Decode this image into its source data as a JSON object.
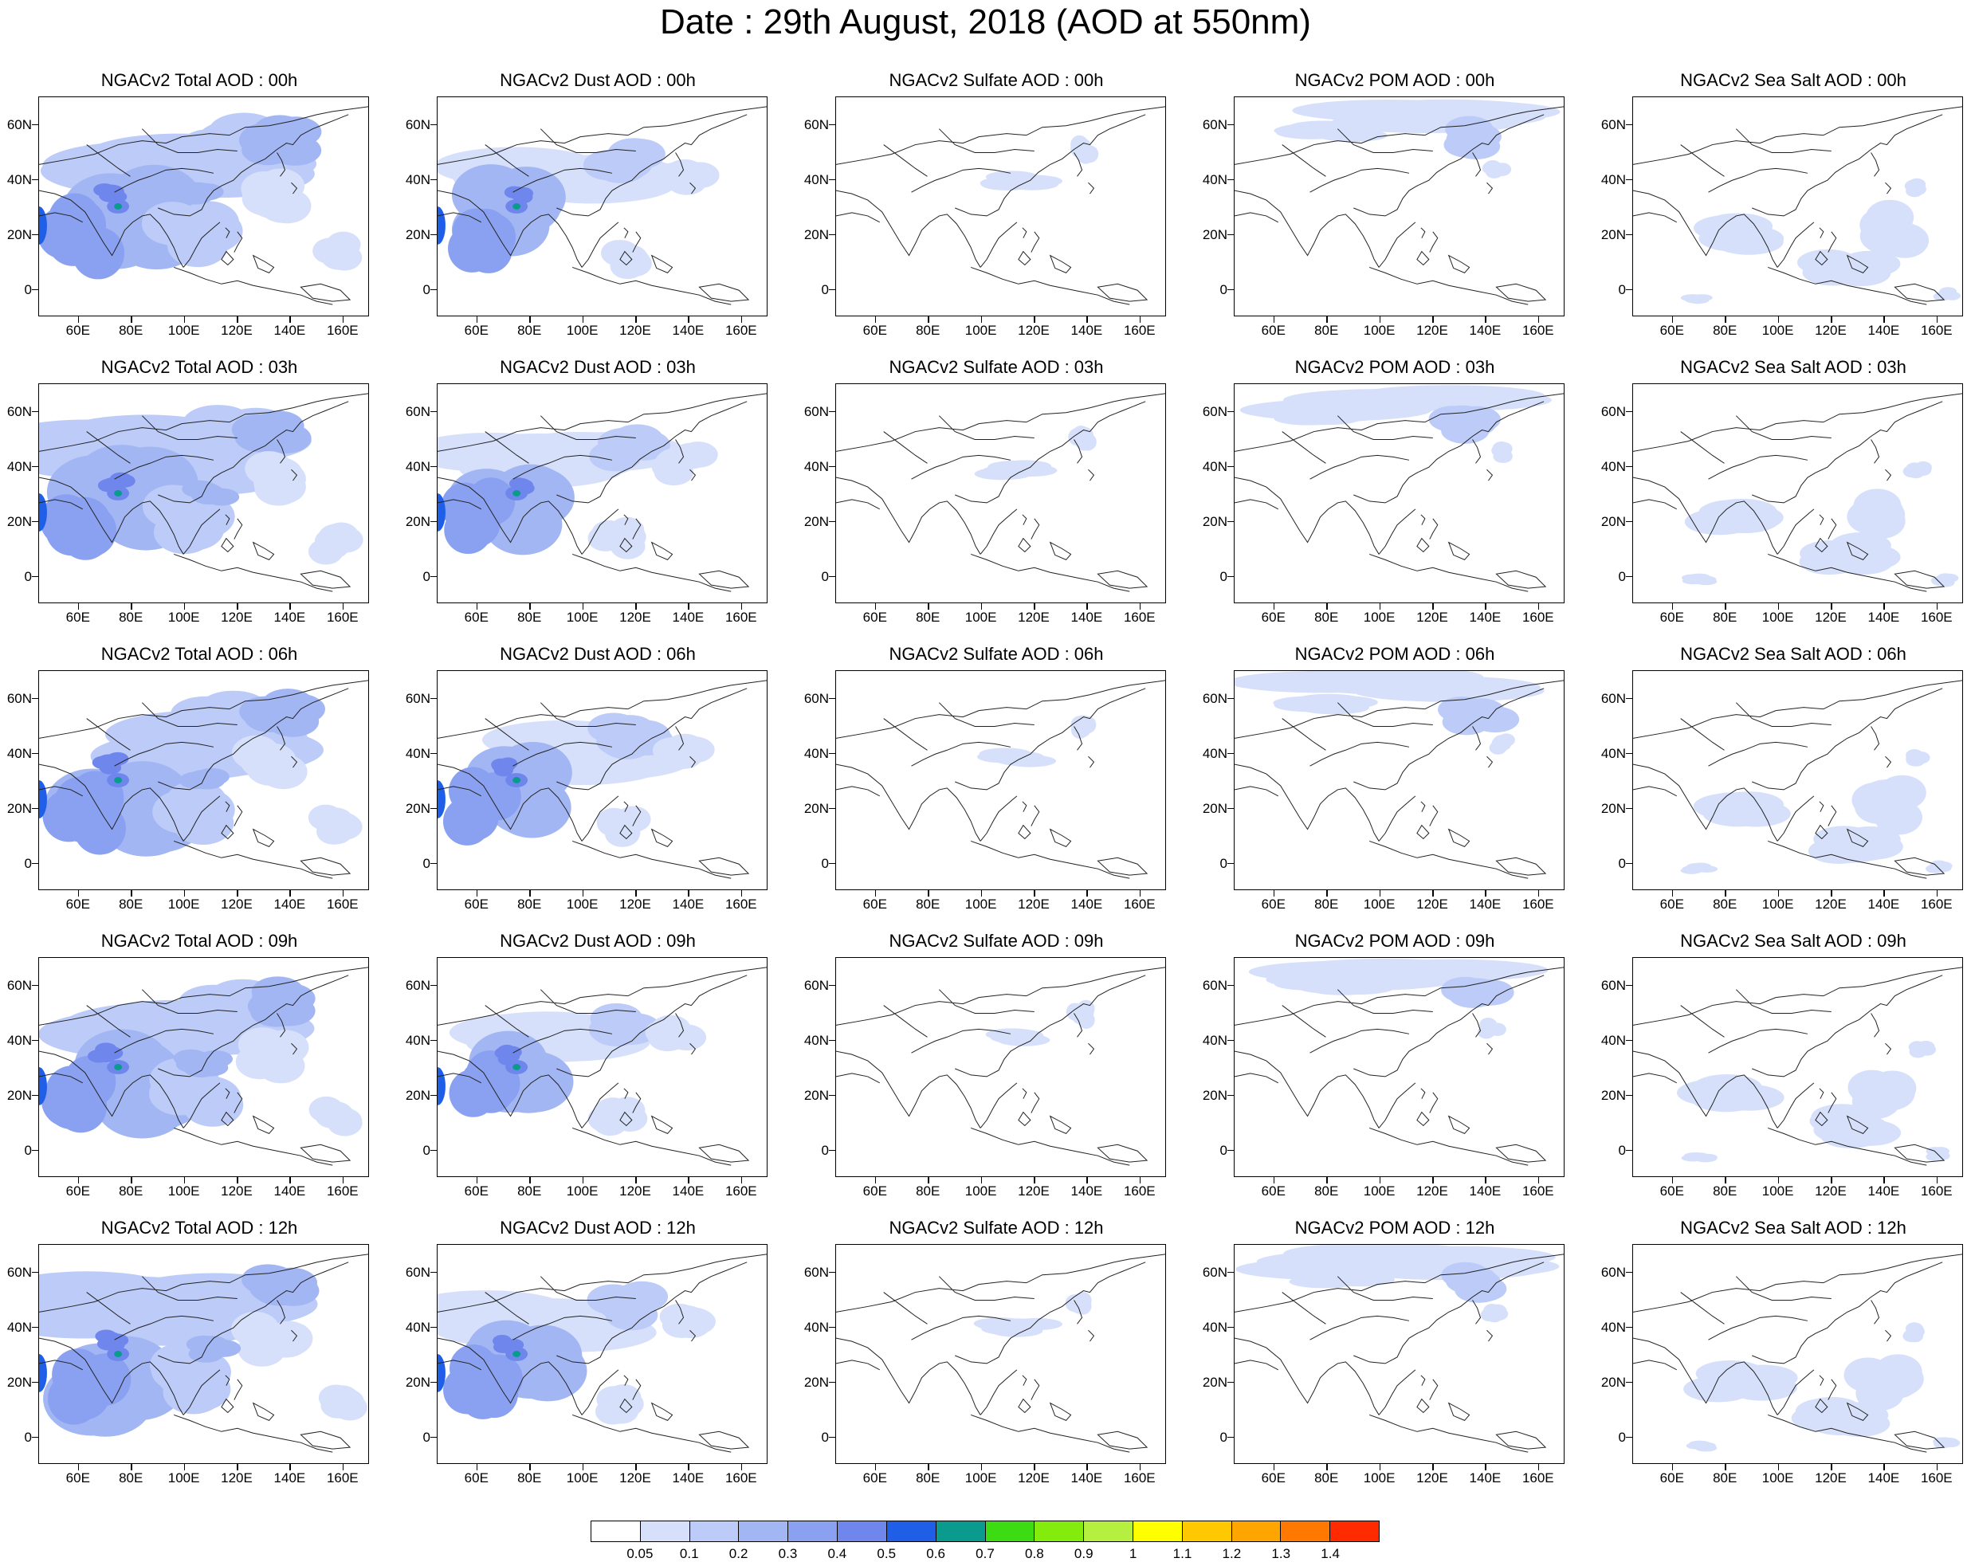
{
  "title": "Date : 29th August, 2018 (AOD at 550nm)",
  "axes": {
    "lon_ticks": [
      "60E",
      "80E",
      "100E",
      "120E",
      "140E",
      "160E"
    ],
    "lat_ticks": [
      "60N",
      "40N",
      "20N",
      "0"
    ]
  },
  "panels": [
    [
      "NGACv2 Total AOD : 00h",
      "NGACv2 Dust AOD : 00h",
      "NGACv2 Sulfate AOD : 00h",
      "NGACv2 POM AOD : 00h",
      "NGACv2 Sea Salt AOD : 00h"
    ],
    [
      "NGACv2 Total AOD : 03h",
      "NGACv2 Dust AOD : 03h",
      "NGACv2 Sulfate AOD : 03h",
      "NGACv2 POM AOD : 03h",
      "NGACv2 Sea Salt AOD : 03h"
    ],
    [
      "NGACv2 Total AOD : 06h",
      "NGACv2 Dust AOD : 06h",
      "NGACv2 Sulfate AOD : 06h",
      "NGACv2 POM AOD : 06h",
      "NGACv2 Sea Salt AOD : 06h"
    ],
    [
      "NGACv2 Total AOD : 09h",
      "NGACv2 Dust AOD : 09h",
      "NGACv2 Sulfate AOD : 09h",
      "NGACv2 POM AOD : 09h",
      "NGACv2 Sea Salt  AOD : 09h"
    ],
    [
      "NGACv2 Total AOD  : 12h",
      "NGACv2 Dust AOD : 12h",
      "NGACv2 Sulfate AOD : 12h",
      "NGACv2 POM  AOD : 12h",
      "NGACv2 Sea Salt  AOD : 12h"
    ]
  ],
  "colorbar": {
    "colors": [
      "#ffffff",
      "#d6e0fb",
      "#bccbf7",
      "#a3b6f4",
      "#8aa0f0",
      "#6f86ec",
      "#1f5fe8",
      "#0b9a8e",
      "#3ddc12",
      "#83ec0d",
      "#b5f040",
      "#ffff00",
      "#ffc800",
      "#ffa500",
      "#ff7800",
      "#ff2a00"
    ],
    "labels": [
      "0.05",
      "0.1",
      "0.2",
      "0.3",
      "0.4",
      "0.5",
      "0.6",
      "0.7",
      "0.8",
      "0.9",
      "1",
      "1.1",
      "1.2",
      "1.3",
      "1.4"
    ]
  }
}
